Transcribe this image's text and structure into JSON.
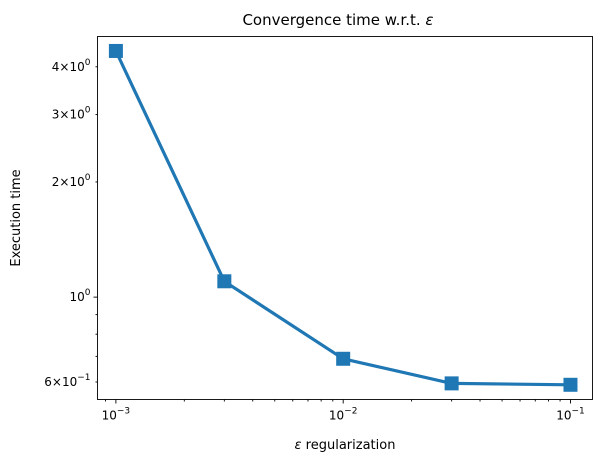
{
  "chart_data": {
    "type": "line",
    "title_main": "Convergence time w.r.t. ",
    "title_symbol": "ε",
    "xlabel_symbol": "ε",
    "xlabel_rest": " regularization",
    "ylabel": "Execution time",
    "xscale": "log",
    "yscale": "log",
    "xlim": [
      0.00083,
      0.125
    ],
    "ylim": [
      0.54,
      4.8
    ],
    "grid": false,
    "marker": "square",
    "color": "#1f77b4",
    "x": [
      0.001,
      0.003,
      0.01,
      0.03,
      0.1
    ],
    "y": [
      4.4,
      1.1,
      0.69,
      0.595,
      0.59
    ],
    "xticks": [
      {
        "base": "10",
        "exp": "−3",
        "value": 0.001
      },
      {
        "base": "10",
        "exp": "−2",
        "value": 0.01
      },
      {
        "base": "10",
        "exp": "−1",
        "value": 0.1
      }
    ],
    "yticks": [
      {
        "mant": "6",
        "base": "10",
        "exp": "−1",
        "value": 0.6
      },
      {
        "mant": "",
        "base": "10",
        "exp": "0",
        "value": 1.0
      },
      {
        "mant": "2",
        "base": "10",
        "exp": "0",
        "value": 2.0
      },
      {
        "mant": "3",
        "base": "10",
        "exp": "0",
        "value": 3.0
      },
      {
        "mant": "4",
        "base": "10",
        "exp": "0",
        "value": 4.0
      }
    ]
  }
}
